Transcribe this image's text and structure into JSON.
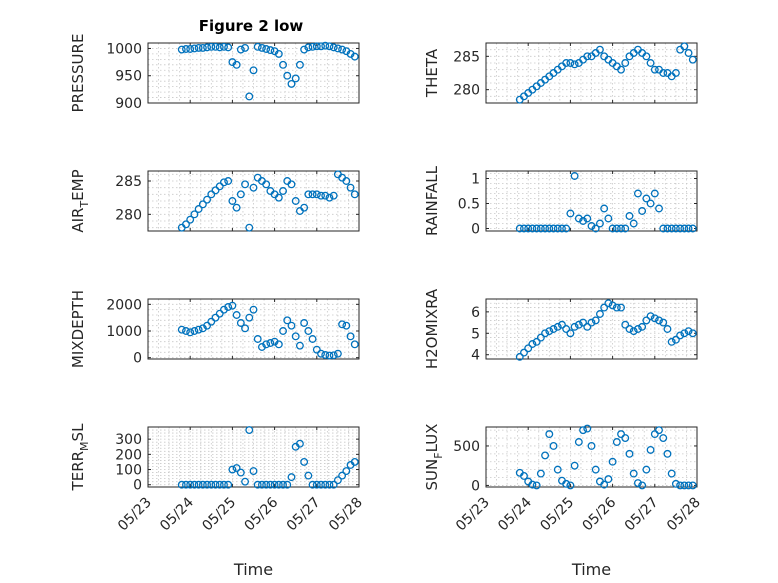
{
  "figure": {
    "title": "Figure 2 low"
  },
  "chart_data": [
    {
      "type": "scatter",
      "ylabel": "PRESSURE",
      "ylim": [
        900,
        1010
      ],
      "yticks": [
        900,
        950,
        1000
      ],
      "ytick_labels": [
        "900",
        "950",
        "1000"
      ],
      "x": [
        0.8,
        0.9,
        1.0,
        1.1,
        1.2,
        1.3,
        1.4,
        1.5,
        1.6,
        1.7,
        1.8,
        1.9,
        2.0,
        2.1,
        2.2,
        2.3,
        2.4,
        2.5,
        2.6,
        2.7,
        2.8,
        2.9,
        3.0,
        3.1,
        3.2,
        3.3,
        3.4,
        3.5,
        3.6,
        3.7,
        3.8,
        3.9,
        4.0,
        4.1,
        4.2,
        4.3,
        4.4,
        4.5,
        4.6,
        4.7,
        4.8,
        4.9
      ],
      "y": [
        998,
        999,
        999,
        1000,
        1001,
        1001,
        1002,
        1003,
        1003,
        1002,
        1003,
        1002,
        975,
        970,
        998,
        1001,
        912,
        960,
        1003,
        1001,
        999,
        997,
        995,
        990,
        970,
        950,
        935,
        945,
        970,
        998,
        1002,
        1003,
        1004,
        1004,
        1005,
        1004,
        1002,
        1000,
        998,
        995,
        990,
        985
      ]
    },
    {
      "type": "scatter",
      "ylabel": "THETA",
      "ylim": [
        278,
        287
      ],
      "yticks": [
        280,
        285
      ],
      "ytick_labels": [
        "280",
        "285"
      ],
      "x": [
        0.8,
        0.9,
        1.0,
        1.1,
        1.2,
        1.3,
        1.4,
        1.5,
        1.6,
        1.7,
        1.8,
        1.9,
        2.0,
        2.1,
        2.2,
        2.3,
        2.4,
        2.5,
        2.6,
        2.7,
        2.8,
        2.9,
        3.0,
        3.1,
        3.2,
        3.3,
        3.4,
        3.5,
        3.6,
        3.7,
        3.8,
        3.9,
        4.0,
        4.1,
        4.2,
        4.3,
        4.4,
        4.5,
        4.6,
        4.7,
        4.8,
        4.9
      ],
      "y": [
        278.5,
        279,
        279.5,
        280,
        280.5,
        281,
        281.5,
        282,
        282.5,
        283,
        283.5,
        284,
        284,
        283.8,
        284,
        284.5,
        285,
        285,
        285.5,
        286,
        285,
        284.5,
        284,
        283.5,
        283,
        284,
        285,
        285.5,
        286,
        285.5,
        285,
        284,
        283,
        283,
        282.5,
        282.5,
        282,
        282.5,
        286,
        286.5,
        285.5,
        284.5
      ]
    },
    {
      "type": "scatter",
      "ylabel": "AIR_TEMP",
      "ylim": [
        277.5,
        286.5
      ],
      "yticks": [
        280,
        285
      ],
      "ytick_labels": [
        "280",
        "285"
      ],
      "x": [
        0.8,
        0.9,
        1.0,
        1.1,
        1.2,
        1.3,
        1.4,
        1.5,
        1.6,
        1.7,
        1.8,
        1.9,
        2.0,
        2.1,
        2.2,
        2.3,
        2.4,
        2.5,
        2.6,
        2.7,
        2.8,
        2.9,
        3.0,
        3.1,
        3.2,
        3.3,
        3.4,
        3.5,
        3.6,
        3.7,
        3.8,
        3.9,
        4.0,
        4.1,
        4.2,
        4.3,
        4.4,
        4.5,
        4.6,
        4.7,
        4.8,
        4.9
      ],
      "y": [
        278,
        278.5,
        279.2,
        280,
        280.8,
        281.5,
        282.2,
        283,
        283.6,
        284.2,
        284.8,
        285,
        282,
        281,
        283,
        284.5,
        278,
        284,
        285.5,
        285,
        284.5,
        283.5,
        283,
        282.5,
        283.5,
        285,
        284.5,
        282,
        280.5,
        281,
        283,
        283,
        283,
        282.8,
        282.8,
        282.5,
        282.8,
        286,
        285.5,
        285,
        284,
        283
      ]
    },
    {
      "type": "scatter",
      "ylabel": "RAINFALL",
      "ylim": [
        -0.05,
        1.15
      ],
      "yticks": [
        0,
        0.5,
        1
      ],
      "ytick_labels": [
        "0",
        "0.5",
        "1"
      ],
      "x": [
        0.8,
        0.9,
        1.0,
        1.1,
        1.2,
        1.3,
        1.4,
        1.5,
        1.6,
        1.7,
        1.8,
        1.9,
        2.0,
        2.1,
        2.2,
        2.3,
        2.4,
        2.5,
        2.6,
        2.7,
        2.8,
        2.9,
        3.0,
        3.1,
        3.2,
        3.3,
        3.4,
        3.5,
        3.6,
        3.7,
        3.8,
        3.9,
        4.0,
        4.1,
        4.2,
        4.3,
        4.4,
        4.5,
        4.6,
        4.7,
        4.8,
        4.9
      ],
      "y": [
        0,
        0,
        0,
        0,
        0,
        0,
        0,
        0,
        0,
        0,
        0,
        0,
        0.3,
        1.05,
        0.2,
        0.15,
        0.2,
        0.05,
        0,
        0.1,
        0.4,
        0.2,
        0,
        0,
        0,
        0,
        0.25,
        0.1,
        0.7,
        0.35,
        0.6,
        0.5,
        0.7,
        0.4,
        0,
        0,
        0,
        0,
        0,
        0,
        0,
        0
      ]
    },
    {
      "type": "scatter",
      "ylabel": "MIXDEPTH",
      "ylim": [
        -50,
        2200
      ],
      "yticks": [
        0,
        1000,
        2000
      ],
      "ytick_labels": [
        "0",
        "1000",
        "2000"
      ],
      "x": [
        0.8,
        0.9,
        1.0,
        1.1,
        1.2,
        1.3,
        1.4,
        1.5,
        1.6,
        1.7,
        1.8,
        1.9,
        2.0,
        2.1,
        2.2,
        2.3,
        2.4,
        2.5,
        2.6,
        2.7,
        2.8,
        2.9,
        3.0,
        3.1,
        3.2,
        3.3,
        3.4,
        3.5,
        3.6,
        3.7,
        3.8,
        3.9,
        4.0,
        4.1,
        4.2,
        4.3,
        4.4,
        4.5,
        4.6,
        4.7,
        4.8,
        4.9
      ],
      "y": [
        1050,
        1000,
        950,
        1000,
        1050,
        1100,
        1200,
        1350,
        1500,
        1650,
        1800,
        1900,
        1950,
        1600,
        1300,
        1100,
        1500,
        1800,
        700,
        400,
        500,
        550,
        600,
        500,
        1000,
        1400,
        1200,
        800,
        450,
        1300,
        1000,
        700,
        300,
        150,
        100,
        80,
        90,
        150,
        1250,
        1200,
        800,
        500
      ]
    },
    {
      "type": "scatter",
      "ylabel": "H2OMIXRA",
      "ylim": [
        3.8,
        6.6
      ],
      "yticks": [
        4,
        5,
        6
      ],
      "ytick_labels": [
        "4",
        "5",
        "6"
      ],
      "x": [
        0.8,
        0.9,
        1.0,
        1.1,
        1.2,
        1.3,
        1.4,
        1.5,
        1.6,
        1.7,
        1.8,
        1.9,
        2.0,
        2.1,
        2.2,
        2.3,
        2.4,
        2.5,
        2.6,
        2.7,
        2.8,
        2.9,
        3.0,
        3.1,
        3.2,
        3.3,
        3.4,
        3.5,
        3.6,
        3.7,
        3.8,
        3.9,
        4.0,
        4.1,
        4.2,
        4.3,
        4.4,
        4.5,
        4.6,
        4.7,
        4.8,
        4.9
      ],
      "y": [
        3.9,
        4.1,
        4.3,
        4.5,
        4.6,
        4.8,
        5.0,
        5.1,
        5.2,
        5.3,
        5.4,
        5.2,
        5.0,
        5.3,
        5.4,
        5.5,
        5.3,
        5.5,
        5.6,
        5.9,
        6.2,
        6.4,
        6.3,
        6.2,
        6.2,
        5.4,
        5.2,
        5.1,
        5.2,
        5.3,
        5.6,
        5.8,
        5.7,
        5.6,
        5.5,
        5.2,
        4.6,
        4.7,
        4.9,
        5.0,
        5.1,
        5.0
      ]
    },
    {
      "type": "scatter",
      "ylabel": "TERR_MSL",
      "ylim": [
        -15,
        380
      ],
      "yticks": [
        0,
        100,
        200,
        300
      ],
      "ytick_labels": [
        "0",
        "100",
        "200",
        "300"
      ],
      "x": [
        0.8,
        0.9,
        1.0,
        1.1,
        1.2,
        1.3,
        1.4,
        1.5,
        1.6,
        1.7,
        1.8,
        1.9,
        2.0,
        2.1,
        2.2,
        2.3,
        2.4,
        2.5,
        2.6,
        2.7,
        2.8,
        2.9,
        3.0,
        3.1,
        3.2,
        3.3,
        3.4,
        3.5,
        3.6,
        3.7,
        3.8,
        3.9,
        4.0,
        4.1,
        4.2,
        4.3,
        4.4,
        4.5,
        4.6,
        4.7,
        4.8,
        4.9
      ],
      "y": [
        0,
        0,
        0,
        0,
        0,
        0,
        0,
        0,
        0,
        0,
        0,
        0,
        100,
        110,
        80,
        20,
        360,
        90,
        0,
        0,
        0,
        0,
        0,
        0,
        0,
        0,
        50,
        250,
        270,
        150,
        60,
        0,
        0,
        0,
        0,
        0,
        0,
        30,
        60,
        90,
        130,
        150
      ]
    },
    {
      "type": "scatter",
      "ylabel": "SUN_FLUX",
      "ylim": [
        -20,
        740
      ],
      "yticks": [
        0,
        500
      ],
      "ytick_labels": [
        "0",
        "500"
      ],
      "x": [
        0.8,
        0.9,
        1.0,
        1.1,
        1.2,
        1.3,
        1.4,
        1.5,
        1.6,
        1.7,
        1.8,
        1.9,
        2.0,
        2.1,
        2.2,
        2.3,
        2.4,
        2.5,
        2.6,
        2.7,
        2.8,
        2.9,
        3.0,
        3.1,
        3.2,
        3.3,
        3.4,
        3.5,
        3.6,
        3.7,
        3.8,
        3.9,
        4.0,
        4.1,
        4.2,
        4.3,
        4.4,
        4.5,
        4.6,
        4.7,
        4.8,
        4.9
      ],
      "y": [
        160,
        120,
        50,
        10,
        0,
        150,
        380,
        650,
        500,
        200,
        60,
        20,
        0,
        250,
        550,
        700,
        720,
        500,
        200,
        50,
        10,
        80,
        300,
        550,
        650,
        600,
        400,
        150,
        30,
        0,
        200,
        450,
        650,
        700,
        600,
        400,
        150,
        20,
        0,
        0,
        0,
        0
      ]
    }
  ],
  "shared_x": {
    "xlabel": "Time",
    "xlim": [
      0,
      5
    ],
    "xticks": [
      0,
      1,
      2,
      3,
      4,
      5
    ],
    "xtick_labels": [
      "05/23",
      "05/24",
      "05/25",
      "05/26",
      "05/27",
      "05/28"
    ]
  }
}
